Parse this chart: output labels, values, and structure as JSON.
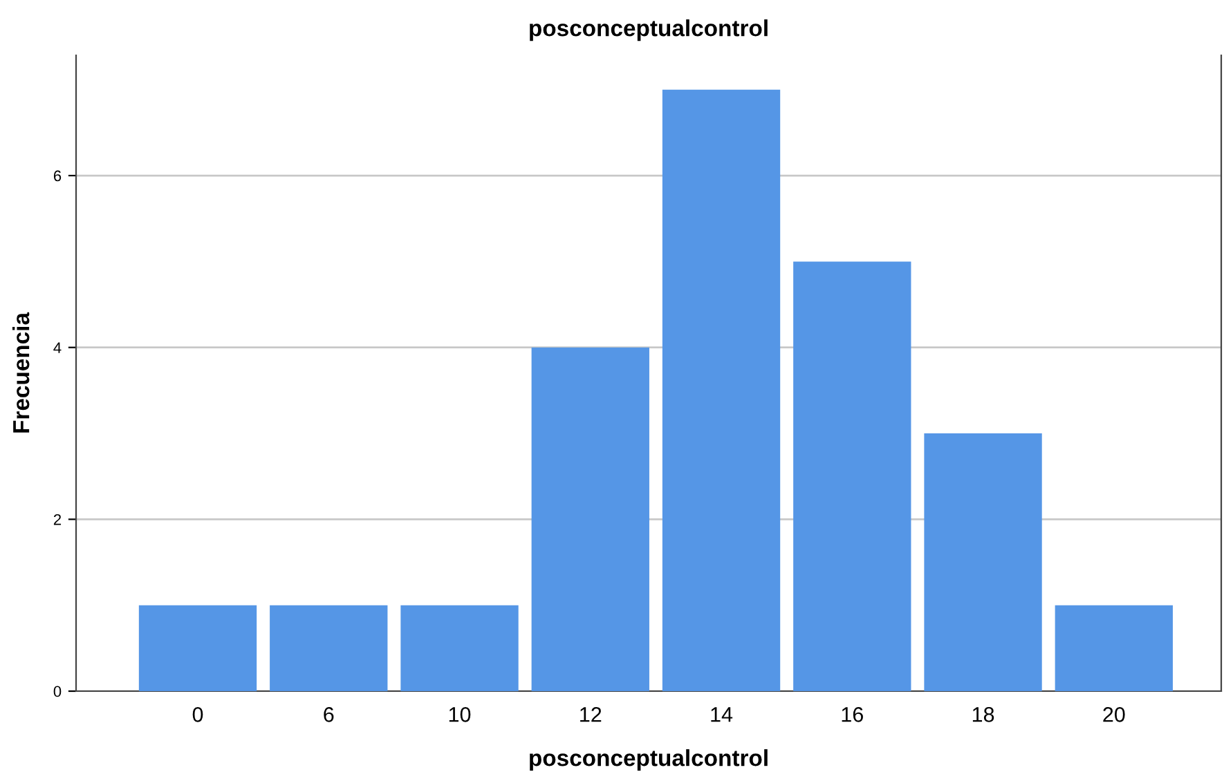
{
  "chart_data": {
    "type": "bar",
    "title": "posconceptualcontrol",
    "xlabel": "posconceptualcontrol",
    "ylabel": "Frecuencia",
    "categories": [
      "0",
      "6",
      "10",
      "12",
      "14",
      "16",
      "18",
      "20"
    ],
    "values": [
      1,
      1,
      1,
      4,
      7,
      5,
      3,
      1
    ],
    "color": "#5596e6",
    "ylim": [
      0,
      7.4
    ],
    "yticks": [
      0,
      2,
      4,
      6
    ],
    "grid": "y",
    "legend": false
  }
}
